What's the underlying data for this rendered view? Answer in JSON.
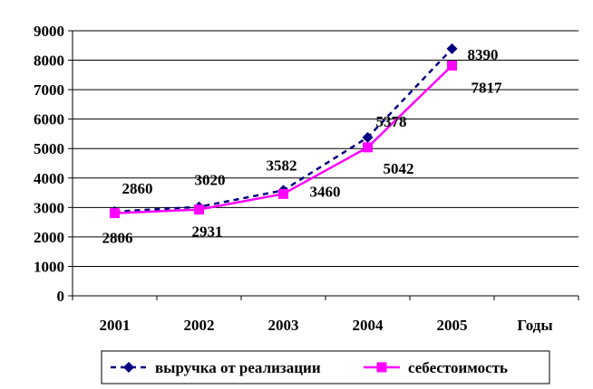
{
  "chart_data": {
    "type": "line",
    "categories": [
      "2001",
      "2002",
      "2003",
      "2004",
      "2005"
    ],
    "xlabel": "Годы",
    "ylabel": "",
    "title": "",
    "ylim": [
      0,
      9000
    ],
    "yticks": [
      0,
      1000,
      2000,
      3000,
      4000,
      5000,
      6000,
      7000,
      8000,
      9000
    ],
    "grid": true,
    "legend_position": "bottom",
    "series": [
      {
        "name": "выручка от реализации",
        "values": [
          2860,
          3020,
          3582,
          5378,
          8390
        ],
        "color": "#000080",
        "line_style": "dashed",
        "marker": "diamond"
      },
      {
        "name": "себестоимость",
        "values": [
          2806,
          2931,
          3460,
          5042,
          7817
        ],
        "color": "#ff00ff",
        "line_style": "solid",
        "marker": "square"
      }
    ]
  }
}
